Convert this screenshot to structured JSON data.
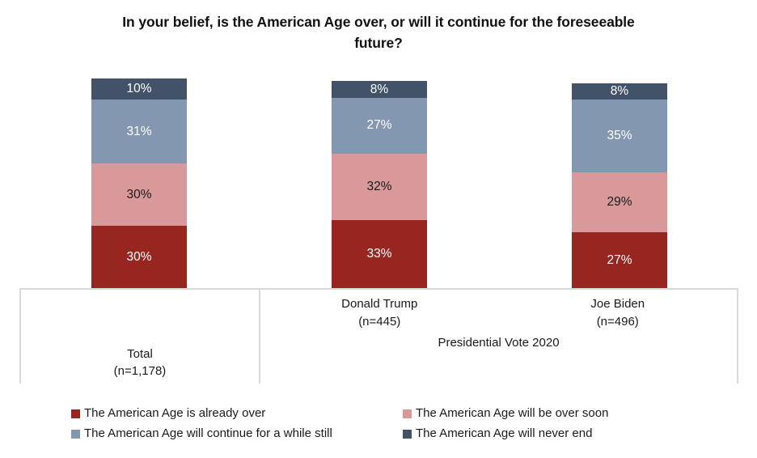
{
  "title": "In your belief, is the American Age over, or will it continue for the foreseeable future?",
  "chart_data": {
    "type": "bar",
    "stacked": true,
    "orientation": "vertical",
    "unit": "%",
    "data_labels": true,
    "legend_position": "bottom",
    "categories": [
      "Total (n=1,178)",
      "Donald Trump (n=445)",
      "Joe Biden (n=496)"
    ],
    "group_label": "Presidential Vote 2020",
    "series": [
      {
        "name": "The American Age is already over",
        "color": "#96261F",
        "label_color": "#ffffff",
        "values": [
          30,
          33,
          27
        ]
      },
      {
        "name": "The American Age will be over soon",
        "color": "#D9989A",
        "label_color": "#1a1a1a",
        "values": [
          30,
          32,
          29
        ]
      },
      {
        "name": "The American Age will continue for a while still",
        "color": "#8497B0",
        "label_color": "#ffffff",
        "values": [
          31,
          27,
          35
        ]
      },
      {
        "name": "The American Age will never end",
        "color": "#425269",
        "label_color": "#ffffff",
        "values": [
          10,
          8,
          8
        ]
      }
    ]
  },
  "axis": {
    "categories": [
      {
        "line1": "Total",
        "line2": "(n=1,178)"
      },
      {
        "line1": "Donald Trump",
        "line2": "(n=445)"
      },
      {
        "line1": "Joe Biden",
        "line2": "(n=496)"
      }
    ],
    "group_label": "Presidential Vote 2020"
  }
}
